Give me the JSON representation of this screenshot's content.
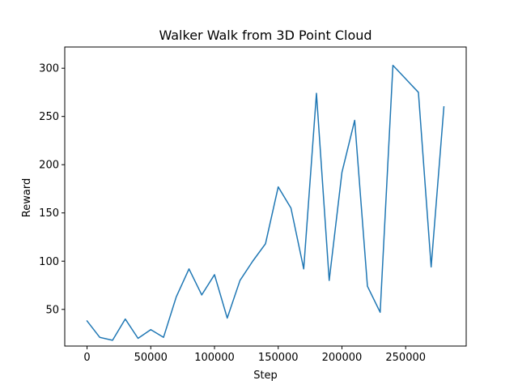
{
  "chart_data": {
    "type": "line",
    "title": "Walker Walk from 3D Point Cloud",
    "xlabel": "Step",
    "ylabel": "Reward",
    "xlim": [
      -17500,
      297500
    ],
    "ylim": [
      12,
      322
    ],
    "xticks": [
      0,
      50000,
      100000,
      150000,
      200000,
      250000
    ],
    "yticks": [
      50,
      100,
      150,
      200,
      250,
      300
    ],
    "grid": false,
    "series": [
      {
        "color": "#1f77b4",
        "x": [
          0,
          10000,
          20000,
          30000,
          40000,
          50000,
          60000,
          70000,
          80000,
          90000,
          100000,
          110000,
          120000,
          130000,
          140000,
          150000,
          160000,
          170000,
          180000,
          190000,
          200000,
          210000,
          220000,
          230000,
          240000,
          250000,
          260000,
          270000,
          280000
        ],
        "y": [
          38,
          21,
          18,
          40,
          20,
          29,
          21,
          63,
          92,
          65,
          86,
          41,
          80,
          100,
          118,
          177,
          155,
          92,
          274,
          80,
          192,
          246,
          74,
          47,
          303,
          289,
          275,
          94,
          260
        ]
      }
    ]
  }
}
